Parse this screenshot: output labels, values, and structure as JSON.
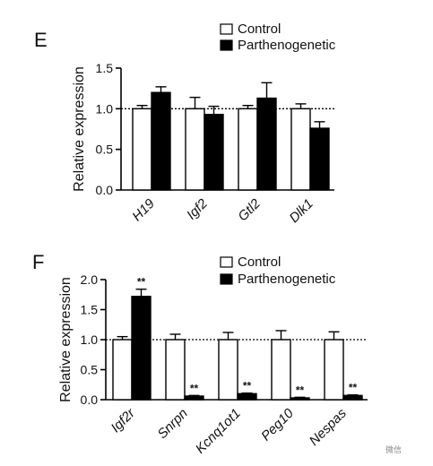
{
  "chart_data": [
    {
      "panel": "E",
      "type": "bar",
      "ylabel": "Relative expression",
      "ylim": [
        0,
        1.5
      ],
      "yticks": [
        "0.0",
        "0.5",
        "1.0",
        "1.5"
      ],
      "reference_line": 1.0,
      "categories": [
        "H19",
        "Igf2",
        "Gtl2",
        "Dlk1"
      ],
      "legend": [
        "Control",
        "Parthenogenetic"
      ],
      "series": [
        {
          "name": "Control",
          "color": "#ffffff",
          "values": [
            1.0,
            1.0,
            1.0,
            1.0
          ],
          "errors": [
            0.04,
            0.14,
            0.04,
            0.06
          ]
        },
        {
          "name": "Parthenogenetic",
          "color": "#000000",
          "values": [
            1.2,
            0.93,
            1.13,
            0.76
          ],
          "errors": [
            0.07,
            0.1,
            0.19,
            0.08
          ]
        }
      ],
      "annotations": []
    },
    {
      "panel": "F",
      "type": "bar",
      "ylabel": "Relative expression",
      "ylim": [
        0,
        2.0
      ],
      "yticks": [
        "0.0",
        "0.5",
        "1.0",
        "1.5",
        "2.0"
      ],
      "reference_line": 1.0,
      "categories": [
        "Igf2r",
        "Snrpn",
        "Kcnq1ot1",
        "Peg10",
        "Nespas"
      ],
      "legend": [
        "Control",
        "Parthenogenetic"
      ],
      "series": [
        {
          "name": "Control",
          "color": "#ffffff",
          "values": [
            1.0,
            1.0,
            1.0,
            1.0,
            1.0
          ],
          "errors": [
            0.05,
            0.09,
            0.12,
            0.15,
            0.13
          ]
        },
        {
          "name": "Parthenogenetic",
          "color": "#000000",
          "values": [
            1.72,
            0.06,
            0.1,
            0.03,
            0.07
          ],
          "errors": [
            0.12,
            0.01,
            0.01,
            0.01,
            0.01
          ]
        }
      ],
      "annotations": [
        "**",
        "**",
        "**",
        "**",
        "**"
      ]
    }
  ],
  "watermark": "微信"
}
